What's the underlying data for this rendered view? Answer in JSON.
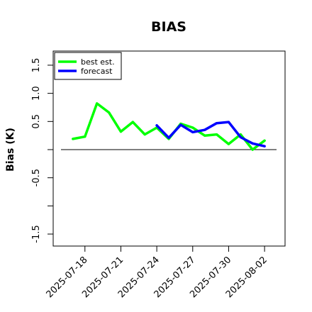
{
  "chart_data": {
    "type": "line",
    "title": "BIAS",
    "xlabel": "",
    "ylabel": "Bias (K)",
    "ylim": [
      -1.6,
      1.6
    ],
    "yticks": [
      -1.5,
      -1.0,
      -0.5,
      0.0,
      0.5,
      1.0,
      1.5
    ],
    "ytick_labels": [
      "-1.5",
      "",
      "-0.5",
      "",
      "0.5",
      "1.0",
      "1.5"
    ],
    "xlim": [
      "2025-07-16",
      "2025-08-03"
    ],
    "xticks": [
      "2025-07-18",
      "2025-07-21",
      "2025-07-24",
      "2025-07-27",
      "2025-07-30",
      "2025-08-02"
    ],
    "xtick_colors": [
      "#000000",
      "#000000",
      "#228b22",
      "#000000",
      "#000000",
      "#000000"
    ],
    "hline": 0.0,
    "legend_position": "top-left",
    "series": [
      {
        "name": "best est.",
        "color": "#00ff00",
        "x": [
          "2025-07-17",
          "2025-07-18",
          "2025-07-19",
          "2025-07-20",
          "2025-07-21",
          "2025-07-22",
          "2025-07-23",
          "2025-07-24",
          "2025-07-25",
          "2025-07-26",
          "2025-07-27",
          "2025-07-28",
          "2025-07-29",
          "2025-07-30",
          "2025-07-31",
          "2025-08-01",
          "2025-08-02"
        ],
        "values": [
          0.19,
          0.23,
          0.82,
          0.66,
          0.32,
          0.49,
          0.27,
          0.39,
          0.19,
          0.46,
          0.39,
          0.25,
          0.27,
          0.1,
          0.27,
          0.0,
          0.16
        ]
      },
      {
        "name": "forecast",
        "color": "#0000ff",
        "x": [
          "2025-07-24",
          "2025-07-25",
          "2025-07-26",
          "2025-07-27",
          "2025-07-28",
          "2025-07-29",
          "2025-07-30",
          "2025-07-31",
          "2025-08-01",
          "2025-08-02"
        ],
        "values": [
          0.43,
          0.21,
          0.44,
          0.31,
          0.35,
          0.47,
          0.49,
          0.22,
          0.11,
          0.06
        ]
      }
    ]
  }
}
